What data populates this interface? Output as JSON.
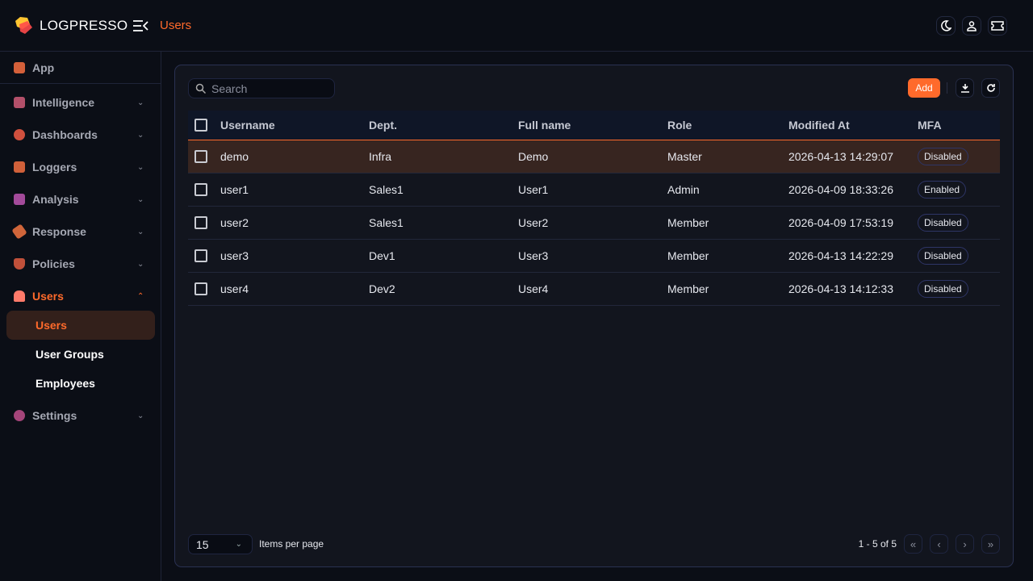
{
  "header": {
    "brand": "LOGPRESSO",
    "breadcrumb": "Users",
    "accent": "#ff6a2b"
  },
  "sidebar": {
    "items": [
      {
        "label": "App",
        "icon": "app-grid-icon",
        "color": "#d4603a"
      },
      {
        "label": "Intelligence",
        "icon": "puzzle-icon",
        "color": "#b3506a"
      },
      {
        "label": "Dashboards",
        "icon": "pie-chart-icon",
        "color": "#d0503e"
      },
      {
        "label": "Loggers",
        "icon": "database-filter-icon",
        "color": "#d0603a"
      },
      {
        "label": "Analysis",
        "icon": "chart-search-icon",
        "color": "#a34a9a"
      },
      {
        "label": "Response",
        "icon": "ticket-icon",
        "color": "#d0653a"
      },
      {
        "label": "Policies",
        "icon": "shield-search-icon",
        "color": "#c0503a"
      },
      {
        "label": "Users",
        "icon": "users-icon",
        "color": "#ff6a2b"
      },
      {
        "label": "Settings",
        "icon": "gear-icon",
        "color": "#a5457a"
      }
    ],
    "sub_items": [
      {
        "label": "Users"
      },
      {
        "label": "User Groups"
      },
      {
        "label": "Employees"
      }
    ]
  },
  "toolbar": {
    "search_placeholder": "Search",
    "add_label": "Add"
  },
  "table": {
    "columns": [
      "Username",
      "Dept.",
      "Full name",
      "Role",
      "Modified At",
      "MFA"
    ],
    "rows": [
      [
        "demo",
        "Infra",
        "Demo",
        "Master",
        "2026-04-13 14:29:07",
        "Disabled"
      ],
      [
        "user1",
        "Sales1",
        "User1",
        "Admin",
        "2026-04-09 18:33:26",
        "Enabled"
      ],
      [
        "user2",
        "Sales1",
        "User2",
        "Member",
        "2026-04-09 17:53:19",
        "Disabled"
      ],
      [
        "user3",
        "Dev1",
        "User3",
        "Member",
        "2026-04-13 14:22:29",
        "Disabled"
      ],
      [
        "user4",
        "Dev2",
        "User4",
        "Member",
        "2026-04-13 14:12:33",
        "Disabled"
      ]
    ]
  },
  "footer": {
    "page_size": "15",
    "items_per_page": "Items per page",
    "range": "1 - 5 of 5"
  }
}
